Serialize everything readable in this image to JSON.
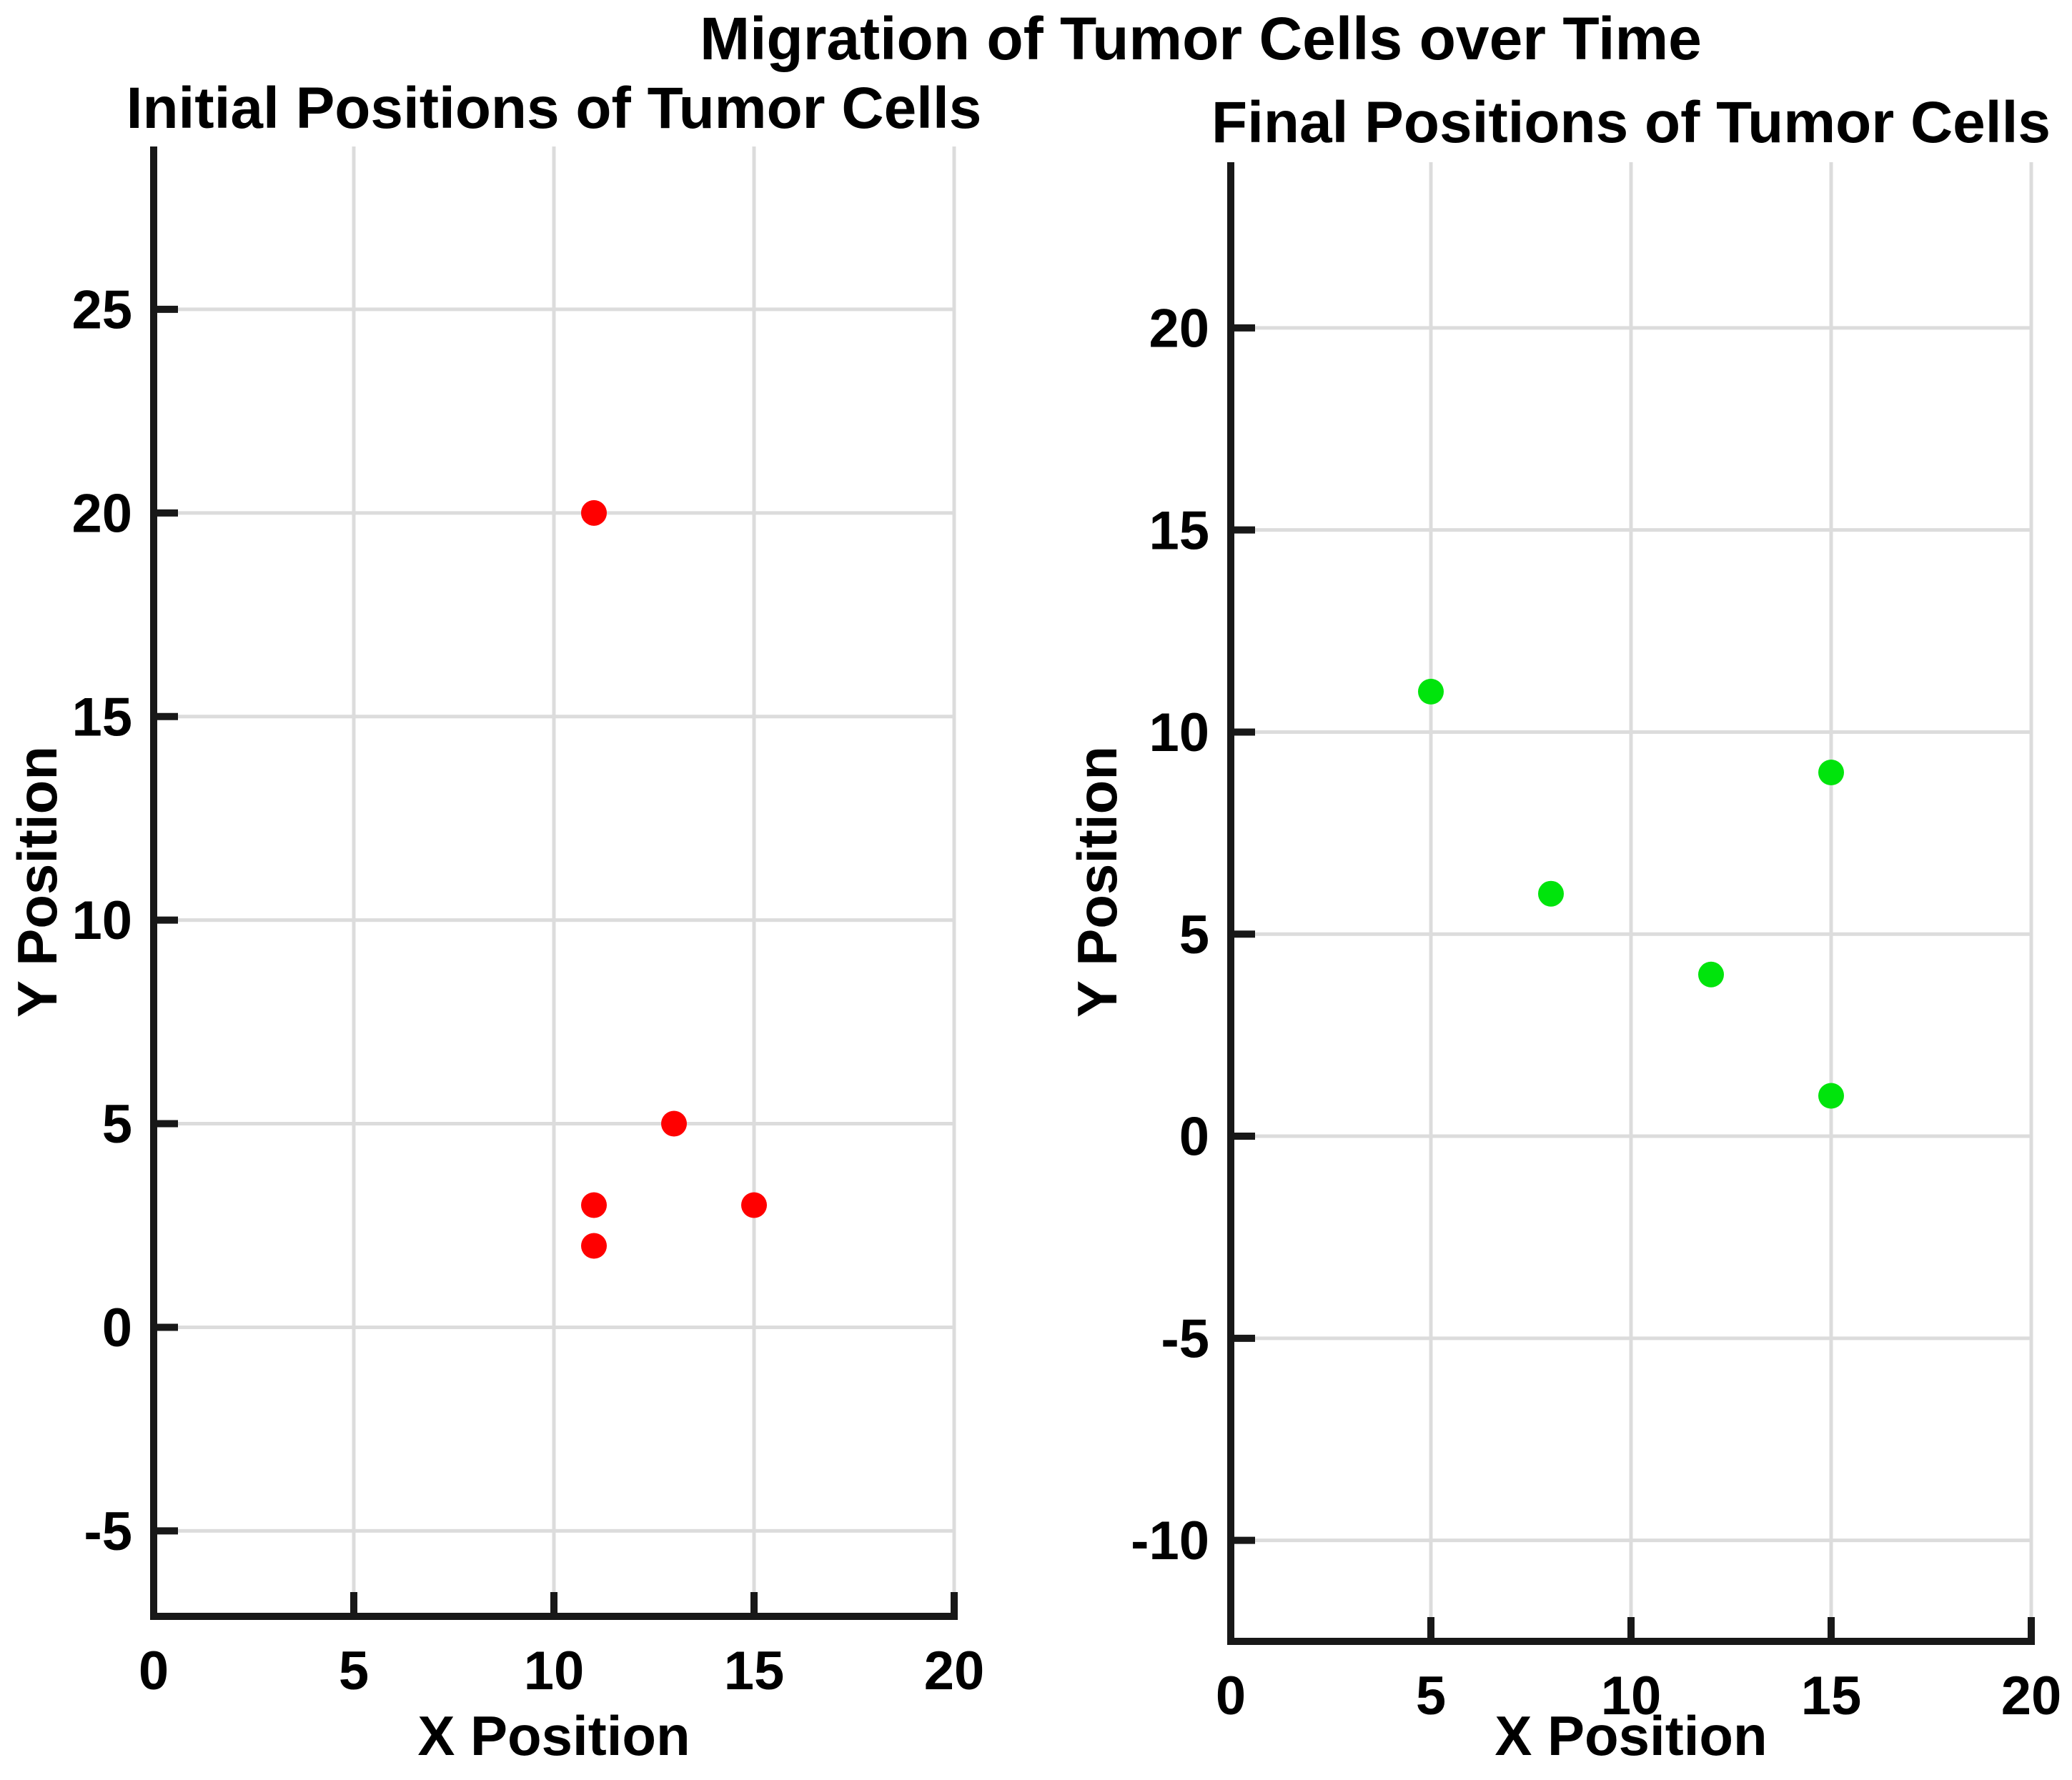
{
  "figure": {
    "suptitle": "Migration of Tumor Cells over Time",
    "background_color": "#ffffff",
    "grid_color": "#dcdcdc",
    "axis_color": "#181818",
    "text_color": "#000000"
  },
  "chart_data": [
    {
      "type": "scatter",
      "title": "Initial Positions of Tumor Cells",
      "xlabel": "X Position",
      "ylabel": "Y Position",
      "marker_color": "#ff0000",
      "marker_name": "red-filled-circle",
      "points": [
        [
          11,
          20
        ],
        [
          13,
          5
        ],
        [
          11,
          3
        ],
        [
          11,
          2
        ],
        [
          15,
          3
        ]
      ],
      "xlim": [
        0,
        20
      ],
      "ylim": [
        -7.1,
        29.0
      ],
      "xticks": [
        0,
        5,
        10,
        15,
        20
      ],
      "yticks": [
        -5,
        0,
        5,
        10,
        15,
        20,
        25
      ],
      "grid": true,
      "legend": "none"
    },
    {
      "type": "scatter",
      "title": "Final Positions of Tumor Cells",
      "xlabel": "X Position",
      "ylabel": "Y Position",
      "marker_color": "#00e40c",
      "marker_name": "green-filled-circle",
      "points": [
        [
          5,
          11
        ],
        [
          8,
          6
        ],
        [
          12,
          4
        ],
        [
          15,
          9
        ],
        [
          15,
          1
        ]
      ],
      "xlim": [
        0,
        20
      ],
      "ylim": [
        -12.5,
        24.1
      ],
      "xticks": [
        0,
        5,
        10,
        15,
        20
      ],
      "yticks": [
        -10,
        -5,
        0,
        5,
        10,
        15,
        20
      ],
      "grid": true,
      "legend": "none"
    }
  ]
}
